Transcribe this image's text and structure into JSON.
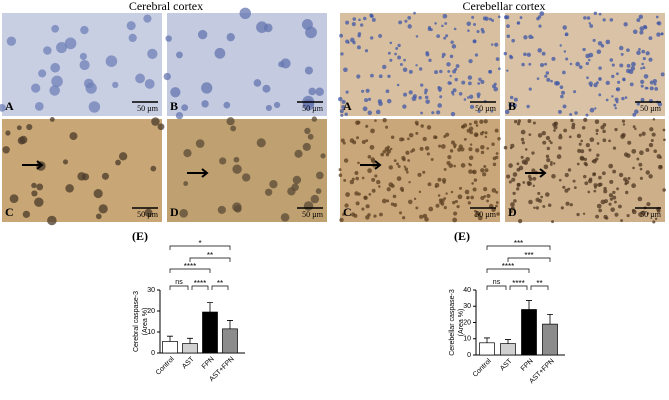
{
  "panels": [
    {
      "title": "Cerebral cortex",
      "letters": [
        "A",
        "B",
        "C",
        "D"
      ],
      "scale": "50 µm"
    },
    {
      "title": "Cerebellar cortex",
      "letters": [
        "A",
        "B",
        "C",
        "D"
      ],
      "scale": "50 µm"
    }
  ],
  "chart_data": [
    {
      "type": "bar",
      "title": "(E)",
      "ylabel": [
        "Cerebral caspase-3",
        "(Area %)"
      ],
      "categories": [
        "Control",
        "AST",
        "FPN",
        "AST+FPN"
      ],
      "values": [
        5.5,
        4.5,
        19.5,
        11.5
      ],
      "errors": [
        2.5,
        2.5,
        4.5,
        4
      ],
      "colors": [
        "#ffffff",
        "#d0d0d0",
        "#000000",
        "#8c8c8c"
      ],
      "ylim": [
        0,
        30
      ],
      "yticks": [
        0,
        10,
        20,
        30
      ],
      "comparisons": [
        {
          "pair": [
            0,
            3
          ],
          "label": "*"
        },
        {
          "pair": [
            1,
            3
          ],
          "label": "**"
        },
        {
          "pair": [
            0,
            2
          ],
          "label": "****"
        },
        {
          "pair": [
            0,
            1
          ],
          "label": "ns"
        },
        {
          "pair": [
            1,
            2
          ],
          "label": "****"
        },
        {
          "pair": [
            2,
            3
          ],
          "label": "**"
        }
      ]
    },
    {
      "type": "bar",
      "title": "(E)",
      "ylabel": [
        "Cerebellar caspase-3",
        "(Area %)"
      ],
      "categories": [
        "Control",
        "AST",
        "FPN",
        "AST+FPN"
      ],
      "values": [
        7.5,
        7,
        28,
        19
      ],
      "errors": [
        3,
        2.5,
        5.5,
        6
      ],
      "colors": [
        "#ffffff",
        "#d0d0d0",
        "#000000",
        "#8c8c8c"
      ],
      "ylim": [
        0,
        40
      ],
      "yticks": [
        0,
        10,
        20,
        30,
        40
      ],
      "comparisons": [
        {
          "pair": [
            0,
            3
          ],
          "label": "***"
        },
        {
          "pair": [
            1,
            3
          ],
          "label": "***"
        },
        {
          "pair": [
            0,
            2
          ],
          "label": "****"
        },
        {
          "pair": [
            0,
            1
          ],
          "label": "ns"
        },
        {
          "pair": [
            1,
            2
          ],
          "label": "****"
        },
        {
          "pair": [
            2,
            3
          ],
          "label": "**"
        }
      ]
    }
  ]
}
